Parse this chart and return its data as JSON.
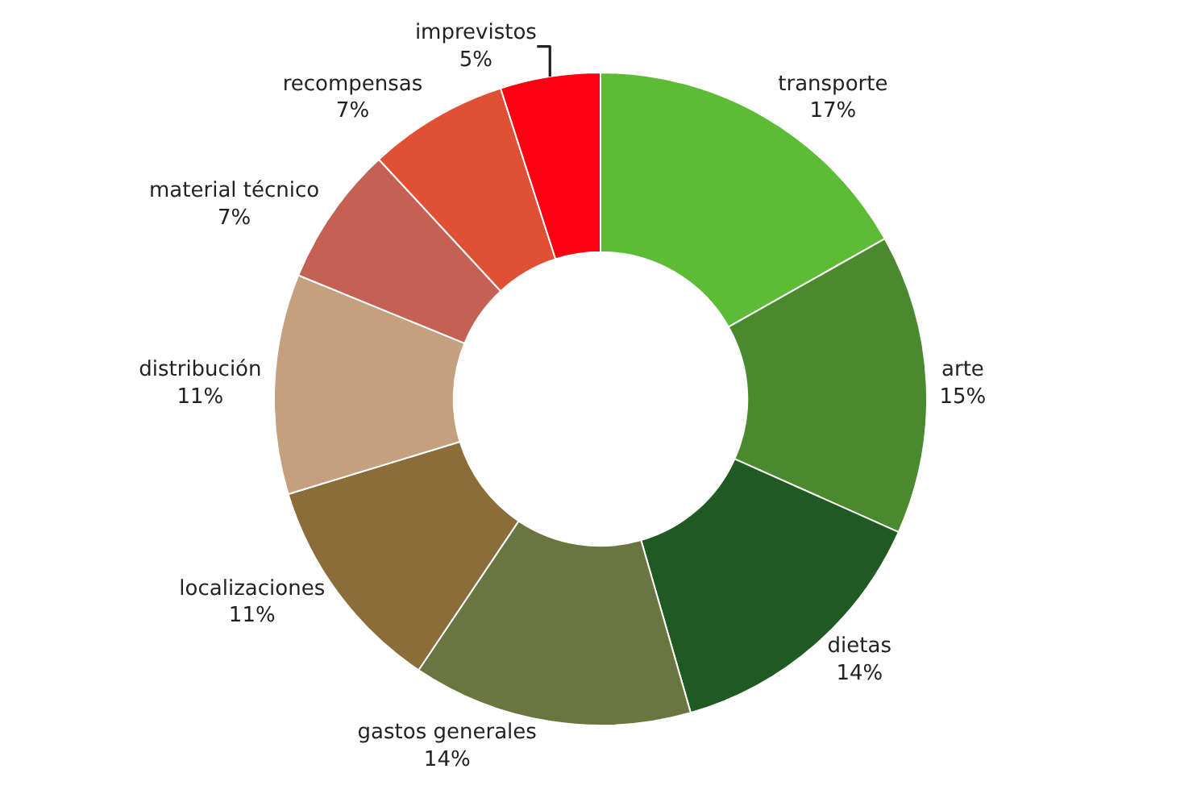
{
  "chart_data": {
    "type": "donut",
    "categories": [
      "transporte",
      "arte",
      "dietas",
      "gastos generales",
      "localizaciones",
      "distribución",
      "material técnico",
      "recompensas",
      "imprevistos"
    ],
    "values": [
      17,
      15,
      14,
      14,
      11,
      11,
      7,
      7,
      5
    ],
    "value_labels": [
      "17%",
      "15%",
      "14%",
      "14%",
      "11%",
      "11%",
      "7%",
      "7%",
      "5%"
    ],
    "colors": [
      "#5dbb35",
      "#4a8a2e",
      "#1f5a22",
      "#6b7540",
      "#8b6d3a",
      "#c4a07e",
      "#c56055",
      "#e05035",
      "#ff0012"
    ],
    "legend": false
  }
}
